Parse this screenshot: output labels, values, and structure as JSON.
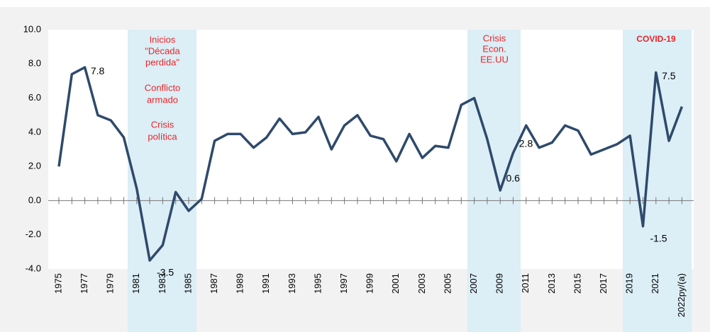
{
  "chart_data": {
    "type": "line",
    "categories": [
      "1975",
      null,
      "1977",
      null,
      "1979",
      null,
      "1981",
      null,
      "1983",
      null,
      "1985",
      null,
      "1987",
      null,
      "1989",
      null,
      "1991",
      null,
      "1993",
      null,
      "1995",
      null,
      "1997",
      null,
      "1999",
      null,
      "2001",
      null,
      "2003",
      null,
      "2005",
      null,
      "2007",
      null,
      "2009",
      null,
      "2011",
      null,
      "2013",
      null,
      "2015",
      null,
      "2017",
      null,
      "2019",
      null,
      "2021",
      null,
      "2022py/(a)"
    ],
    "series": [
      {
        "name": null,
        "color": "#2e4a6b",
        "values": [
          2.0,
          7.4,
          7.8,
          5.0,
          4.7,
          3.7,
          0.7,
          -3.5,
          -2.6,
          0.5,
          -0.6,
          0.1,
          3.5,
          3.9,
          3.9,
          3.1,
          3.7,
          4.8,
          3.9,
          4.0,
          4.9,
          3.0,
          4.4,
          5.0,
          3.8,
          3.6,
          2.3,
          3.9,
          2.5,
          3.2,
          3.1,
          5.6,
          6.0,
          3.6,
          0.6,
          2.8,
          4.4,
          3.1,
          3.4,
          4.4,
          4.1,
          2.7,
          3.0,
          3.3,
          3.8,
          -1.5,
          7.5,
          3.5,
          5.5
        ],
        "value_labels": [
          null,
          null,
          "7.8",
          null,
          null,
          null,
          null,
          "-3.5",
          null,
          null,
          null,
          null,
          null,
          null,
          null,
          null,
          null,
          null,
          null,
          null,
          null,
          null,
          null,
          null,
          null,
          null,
          null,
          null,
          null,
          null,
          null,
          null,
          null,
          null,
          "0.6",
          "2.8",
          null,
          null,
          null,
          null,
          null,
          null,
          null,
          null,
          null,
          "-1.5",
          "7.5",
          null,
          null
        ]
      }
    ],
    "ylim": [
      -4,
      10
    ],
    "yticks": [
      {
        "value": -4,
        "label": "-4.0"
      },
      {
        "value": -2,
        "label": "-2.0"
      },
      {
        "value": 0,
        "label": "0.0"
      },
      {
        "value": 2,
        "label": "2.0"
      },
      {
        "value": 4,
        "label": "4.0"
      },
      {
        "value": 6,
        "label": "6.0"
      },
      {
        "value": 8,
        "label": "8.0"
      },
      {
        "value": 10,
        "label": "10.0"
      }
    ],
    "annotations": {
      "decada": [
        "Inicios",
        "\"Década",
        "perdida\""
      ],
      "conflicto": [
        "Conflicto",
        "armado"
      ],
      "crisis_politica": [
        "Crisis",
        "política"
      ],
      "crisis_eeuu": [
        "Crisis",
        "Econ.",
        "EE.UU"
      ],
      "covid": "COVID-19"
    }
  }
}
